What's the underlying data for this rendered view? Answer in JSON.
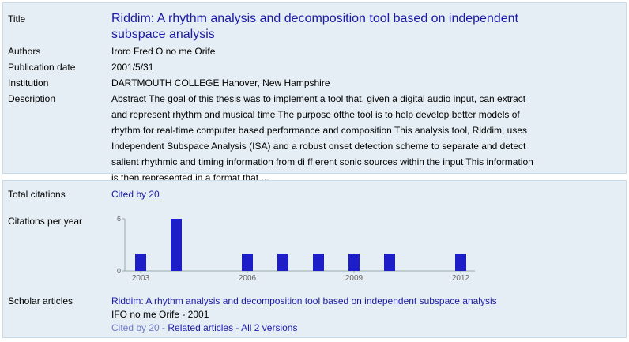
{
  "record": {
    "title_label": "Title",
    "title": "Riddim: A rhythm analysis and decomposition tool based on independent subspace analysis",
    "authors_label": "Authors",
    "authors": "Iroro Fred O no me Orife",
    "pubdate_label": "Publication date",
    "pubdate": "2001/5/31",
    "institution_label": "Institution",
    "institution": "DARTMOUTH COLLEGE Hanover, New Hampshire",
    "description_label": "Description",
    "description": "Abstract The goal of this thesis was to implement a tool that, given a digital audio input, can extract and represent rhythm and musical time The purpose ofthe tool is to help develop better models of rhythm for real-time computer based performance and composition This analysis tool, Riddim, uses Independent Subspace Analysis (ISA) and a robust onset detection scheme to separate and detect salient rhythmic and timing information from di ff erent sonic sources within the input This information is then represented in a format that ..."
  },
  "citations": {
    "total_label": "Total citations",
    "total_link": "Cited by 20",
    "per_year_label": "Citations per year"
  },
  "scholar": {
    "label": "Scholar articles",
    "article_title": "Riddim: A rhythm analysis and decomposition tool based on independent subspace analysis",
    "article_source": "IFO no me Orife - 2001",
    "cited_by": "Cited by 20",
    "sep1": " - ",
    "related": "Related articles",
    "sep2": " - ",
    "versions": "All 2 versions"
  },
  "colors": {
    "panel_bg": "#e5eef4",
    "link": "#1a1aa6",
    "bar": "#1e1ec8",
    "muted_link": "#6f79c8"
  },
  "chart_data": {
    "type": "bar",
    "x": [
      2003,
      2004,
      2005,
      2006,
      2007,
      2008,
      2009,
      2010,
      2011,
      2012
    ],
    "values": [
      2,
      6,
      0,
      2,
      2,
      2,
      2,
      2,
      0,
      2
    ],
    "tick_labels_x": [
      "2003",
      "2006",
      "2009",
      "2012"
    ],
    "tick_values_x": [
      2003,
      2006,
      2009,
      2012
    ],
    "tick_labels_y": [
      "0",
      "6"
    ],
    "ylim": [
      0,
      6
    ],
    "grid": false,
    "title": "",
    "xlabel": "",
    "ylabel": ""
  }
}
